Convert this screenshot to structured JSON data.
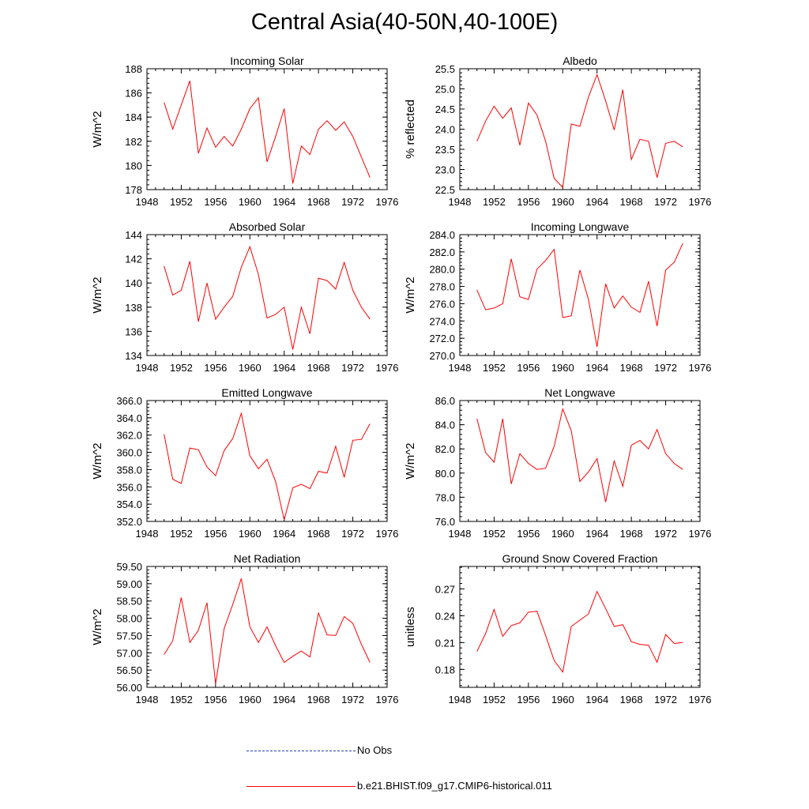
{
  "title": "Central Asia(40-50N,40-100E)",
  "colors": {
    "model": "#ff0000",
    "obs": "#1f3fbf",
    "axis": "#000000"
  },
  "legend": {
    "obs_label": "No Obs",
    "model_label": "b.e21.BHIST.f09_g17.CMIP6-historical.011"
  },
  "x_axis": {
    "range": [
      1948,
      1976
    ],
    "ticks": [
      1948,
      1952,
      1956,
      1960,
      1964,
      1968,
      1972,
      1976
    ]
  },
  "chart_data": [
    {
      "type": "line",
      "title": "Incoming Solar",
      "xlabel": "",
      "ylabel": "W/m^2",
      "ylim": [
        178,
        188
      ],
      "yticks": [
        "178",
        "180",
        "182",
        "184",
        "186",
        "188"
      ],
      "x": [
        1950,
        1951,
        1952,
        1953,
        1954,
        1955,
        1956,
        1957,
        1958,
        1959,
        1960,
        1961,
        1962,
        1963,
        1964,
        1965,
        1966,
        1967,
        1968,
        1969,
        1970,
        1971,
        1972,
        1973,
        1974
      ],
      "series": [
        {
          "name": "b.e21.BHIST.f09_g17.CMIP6-historical.011",
          "values": [
            185.2,
            183.0,
            185.0,
            187.0,
            181.0,
            183.1,
            181.5,
            182.4,
            181.6,
            183.0,
            184.7,
            185.6,
            180.3,
            182.4,
            184.7,
            178.5,
            181.6,
            180.9,
            183.0,
            183.7,
            182.9,
            183.6,
            182.4,
            180.7,
            179.0
          ]
        }
      ]
    },
    {
      "type": "line",
      "title": "Albedo",
      "xlabel": "",
      "ylabel": "% reflected",
      "ylim": [
        22.5,
        25.5
      ],
      "yticks": [
        "22.5",
        "23.0",
        "23.5",
        "24.0",
        "24.5",
        "25.0",
        "25.5"
      ],
      "x": [
        1950,
        1951,
        1952,
        1953,
        1954,
        1955,
        1956,
        1957,
        1958,
        1959,
        1960,
        1961,
        1962,
        1963,
        1964,
        1965,
        1966,
        1967,
        1968,
        1969,
        1970,
        1971,
        1972,
        1973,
        1974
      ],
      "series": [
        {
          "name": "b.e21.BHIST.f09_g17.CMIP6-historical.011",
          "values": [
            23.7,
            24.2,
            24.57,
            24.27,
            24.53,
            23.6,
            24.65,
            24.35,
            23.7,
            22.78,
            22.55,
            24.13,
            24.07,
            24.8,
            25.35,
            24.7,
            23.98,
            24.98,
            23.25,
            23.75,
            23.7,
            22.8,
            23.65,
            23.7,
            23.56
          ]
        }
      ]
    },
    {
      "type": "line",
      "title": "Absorbed Solar",
      "xlabel": "",
      "ylabel": "W/m^2",
      "ylim": [
        134,
        144
      ],
      "yticks": [
        "134",
        "136",
        "138",
        "140",
        "142",
        "144"
      ],
      "x": [
        1950,
        1951,
        1952,
        1953,
        1954,
        1955,
        1956,
        1957,
        1958,
        1959,
        1960,
        1961,
        1962,
        1963,
        1964,
        1965,
        1966,
        1967,
        1968,
        1969,
        1970,
        1971,
        1972,
        1973,
        1974
      ],
      "series": [
        {
          "name": "b.e21.BHIST.f09_g17.CMIP6-historical.011",
          "values": [
            141.4,
            139.0,
            139.4,
            141.8,
            136.8,
            140.0,
            137.0,
            138.0,
            138.9,
            141.3,
            143.0,
            140.7,
            137.1,
            137.4,
            138.0,
            134.5,
            138.0,
            135.8,
            140.4,
            140.2,
            139.5,
            141.7,
            139.4,
            138.0,
            137.0
          ]
        }
      ]
    },
    {
      "type": "line",
      "title": "Incoming Longwave",
      "xlabel": "",
      "ylabel": "W/m^2",
      "ylim": [
        270,
        284
      ],
      "yticks": [
        "270.0",
        "272.0",
        "274.0",
        "276.0",
        "278.0",
        "280.0",
        "282.0",
        "284.0"
      ],
      "x": [
        1950,
        1951,
        1952,
        1953,
        1954,
        1955,
        1956,
        1957,
        1958,
        1959,
        1960,
        1961,
        1962,
        1963,
        1964,
        1965,
        1966,
        1967,
        1968,
        1969,
        1970,
        1971,
        1972,
        1973,
        1974
      ],
      "series": [
        {
          "name": "b.e21.BHIST.f09_g17.CMIP6-historical.011",
          "values": [
            277.6,
            275.3,
            275.5,
            276.0,
            281.2,
            276.8,
            276.5,
            280.0,
            281.0,
            282.3,
            274.4,
            274.6,
            279.9,
            276.5,
            271.0,
            278.3,
            275.5,
            276.9,
            275.6,
            275.0,
            278.6,
            273.4,
            279.9,
            280.8,
            283.0
          ]
        }
      ]
    },
    {
      "type": "line",
      "title": "Emitted Longwave",
      "xlabel": "",
      "ylabel": "W/m^2",
      "ylim": [
        352,
        366
      ],
      "yticks": [
        "352.0",
        "354.0",
        "356.0",
        "358.0",
        "360.0",
        "362.0",
        "364.0",
        "366.0"
      ],
      "x": [
        1950,
        1951,
        1952,
        1953,
        1954,
        1955,
        1956,
        1957,
        1958,
        1959,
        1960,
        1961,
        1962,
        1963,
        1964,
        1965,
        1966,
        1967,
        1968,
        1969,
        1970,
        1971,
        1972,
        1973,
        1974
      ],
      "series": [
        {
          "name": "b.e21.BHIST.f09_g17.CMIP6-historical.011",
          "values": [
            362.1,
            356.9,
            356.4,
            360.5,
            360.3,
            358.3,
            357.3,
            360.2,
            361.6,
            364.5,
            359.6,
            358.1,
            359.2,
            356.6,
            352.2,
            355.9,
            356.3,
            355.8,
            357.8,
            357.6,
            360.7,
            357.1,
            361.4,
            361.5,
            363.3
          ]
        }
      ]
    },
    {
      "type": "line",
      "title": "Net Longwave",
      "xlabel": "",
      "ylabel": "W/m^2",
      "ylim": [
        76,
        86
      ],
      "yticks": [
        "76.0",
        "78.0",
        "80.0",
        "82.0",
        "84.0",
        "86.0"
      ],
      "x": [
        1950,
        1951,
        1952,
        1953,
        1954,
        1955,
        1956,
        1957,
        1958,
        1959,
        1960,
        1961,
        1962,
        1963,
        1964,
        1965,
        1966,
        1967,
        1968,
        1969,
        1970,
        1971,
        1972,
        1973,
        1974
      ],
      "series": [
        {
          "name": "b.e21.BHIST.f09_g17.CMIP6-historical.011",
          "values": [
            84.5,
            81.7,
            80.9,
            84.5,
            79.1,
            81.6,
            80.8,
            80.3,
            80.4,
            82.2,
            85.3,
            83.5,
            79.3,
            80.1,
            81.2,
            77.6,
            81.0,
            78.9,
            82.3,
            82.7,
            82.0,
            83.6,
            81.6,
            80.8,
            80.3
          ]
        }
      ]
    },
    {
      "type": "line",
      "title": "Net Radiation",
      "xlabel": "",
      "ylabel": "W/m^2",
      "ylim": [
        56,
        59.5
      ],
      "yticks": [
        "56.00",
        "56.50",
        "57.00",
        "57.50",
        "58.00",
        "58.50",
        "59.00",
        "59.50"
      ],
      "x": [
        1950,
        1951,
        1952,
        1953,
        1954,
        1955,
        1956,
        1957,
        1958,
        1959,
        1960,
        1961,
        1962,
        1963,
        1964,
        1965,
        1966,
        1967,
        1968,
        1969,
        1970,
        1971,
        1972,
        1973,
        1974
      ],
      "series": [
        {
          "name": "b.e21.BHIST.f09_g17.CMIP6-historical.011",
          "values": [
            56.95,
            57.35,
            58.6,
            57.3,
            57.65,
            58.45,
            56.1,
            57.7,
            58.4,
            59.15,
            57.75,
            57.3,
            57.75,
            57.2,
            56.72,
            56.9,
            57.05,
            56.88,
            58.15,
            57.52,
            57.5,
            58.05,
            57.85,
            57.25,
            56.72
          ]
        }
      ]
    },
    {
      "type": "line",
      "title": "Ground Snow Covered Fraction",
      "xlabel": "",
      "ylabel": "unitless",
      "ylim": [
        0.16,
        0.295
      ],
      "yticks": [
        "0.18",
        "0.21",
        "0.24",
        "0.27"
      ],
      "ytick_values": [
        0.18,
        0.21,
        0.24,
        0.27
      ],
      "x": [
        1950,
        1951,
        1952,
        1953,
        1954,
        1955,
        1956,
        1957,
        1958,
        1959,
        1960,
        1961,
        1962,
        1963,
        1964,
        1965,
        1966,
        1967,
        1968,
        1969,
        1970,
        1971,
        1972,
        1973,
        1974
      ],
      "series": [
        {
          "name": "b.e21.BHIST.f09_g17.CMIP6-historical.011",
          "values": [
            0.2,
            0.22,
            0.247,
            0.217,
            0.229,
            0.232,
            0.244,
            0.245,
            0.218,
            0.19,
            0.177,
            0.228,
            0.235,
            0.242,
            0.267,
            0.248,
            0.228,
            0.23,
            0.211,
            0.208,
            0.207,
            0.188,
            0.219,
            0.209,
            0.21
          ]
        }
      ]
    }
  ]
}
